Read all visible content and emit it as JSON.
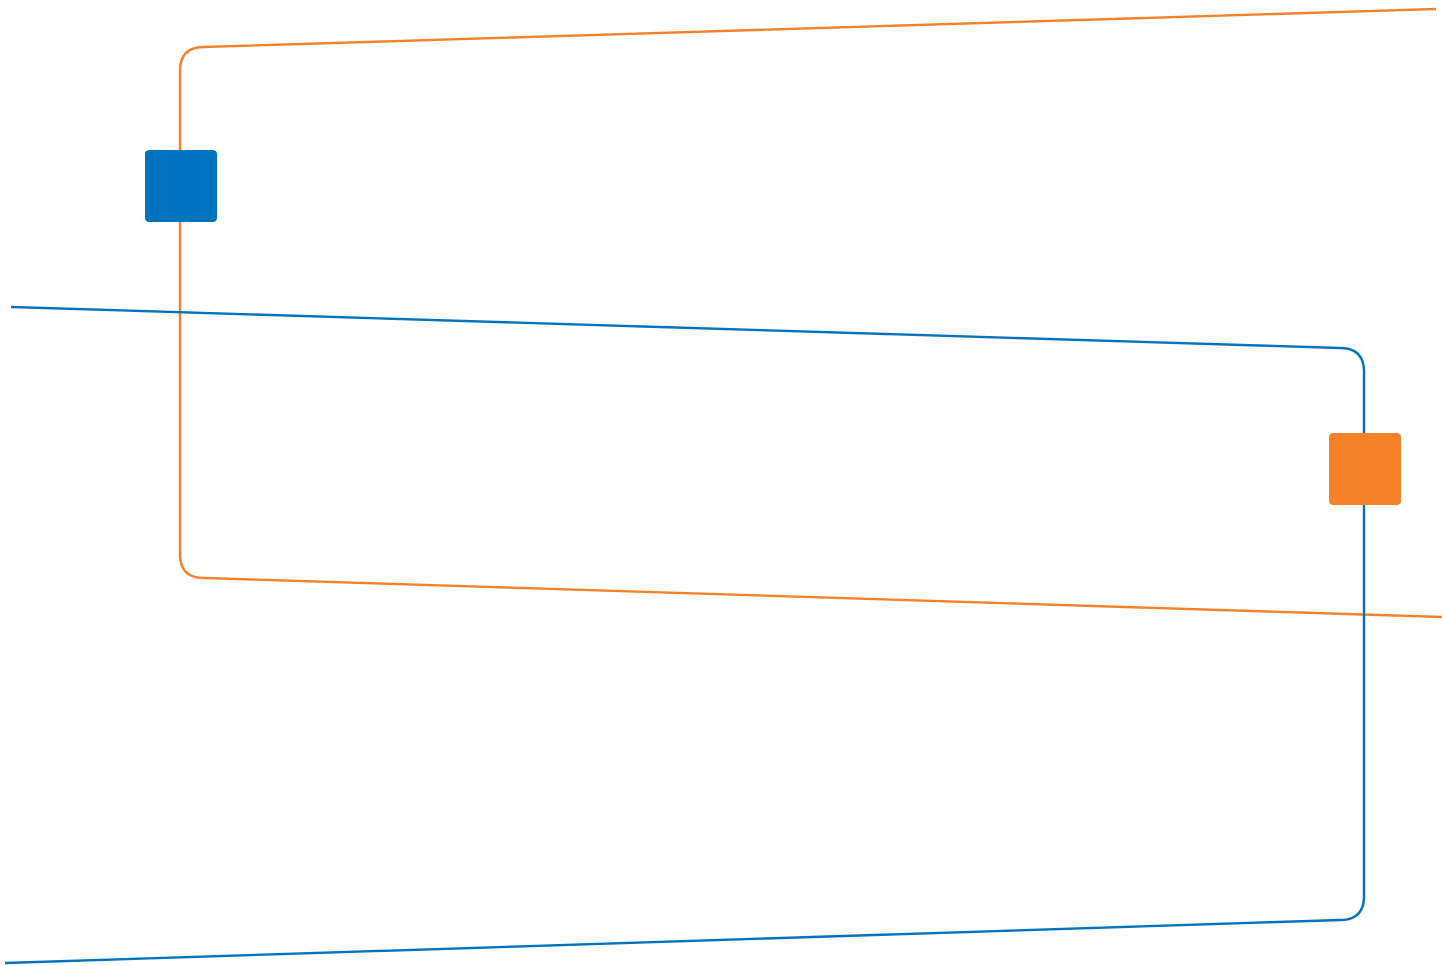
{
  "diagram": {
    "background": "#ffffff",
    "colors": {
      "blue": "#0073BE",
      "orange": "#F5822A"
    },
    "nodes": [
      {
        "id": "blue-node",
        "shape": "rounded-square",
        "color": "#0073BE"
      },
      {
        "id": "orange-node",
        "shape": "rounded-square",
        "color": "#F5822A"
      }
    ],
    "connectors": [
      {
        "id": "orange-connector",
        "color": "#F5822A",
        "passes_through": "blue-node"
      },
      {
        "id": "blue-connector",
        "color": "#0073BE",
        "passes_through": "orange-node"
      }
    ]
  }
}
